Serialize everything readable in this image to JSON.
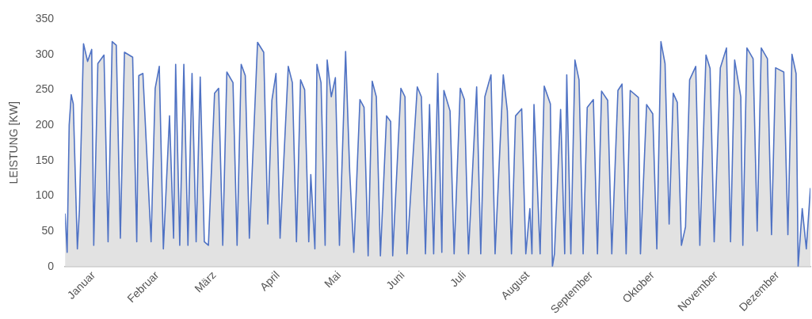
{
  "chart_data": {
    "type": "area",
    "ylabel": "LEISTUNG [KW]",
    "xlim": [
      "--01-01",
      "--12-31"
    ],
    "xticks": [
      {
        "value": "--01-15",
        "label": "Januar"
      },
      {
        "value": "--02-15",
        "label": "Februar"
      },
      {
        "value": "--03-15",
        "label": "März"
      },
      {
        "value": "--04-15",
        "label": "April"
      },
      {
        "value": "--05-15",
        "label": "Mai"
      },
      {
        "value": "--06-15",
        "label": "Juni"
      },
      {
        "value": "--07-15",
        "label": "Juli"
      },
      {
        "value": "--08-15",
        "label": "August"
      },
      {
        "value": "--09-15",
        "label": "September"
      },
      {
        "value": "--10-15",
        "label": "Oktober"
      },
      {
        "value": "--11-15",
        "label": "November"
      },
      {
        "value": "--12-15",
        "label": "Dezember"
      }
    ],
    "ylim": [
      0,
      350
    ],
    "yticks": [
      0,
      50,
      100,
      150,
      200,
      250,
      300,
      350
    ],
    "grid": false,
    "legend": false,
    "marker": "none",
    "line_style": "solid",
    "series": [
      {
        "color": "#4f72c4",
        "x": [
          "--01-01",
          "--01-02",
          "--01-03",
          "--01-04",
          "--01-05",
          "--01-07",
          "--01-08",
          "--01-10",
          "--01-12",
          "--01-14",
          "--01-15",
          "--01-17",
          "--01-20",
          "--01-22",
          "--01-24",
          "--01-26",
          "--01-28",
          "--01-30",
          "--02-03",
          "--02-05",
          "--02-06",
          "--02-08",
          "--02-12",
          "--02-14",
          "--02-16",
          "--02-18",
          "--02-21",
          "--02-23",
          "--02-24",
          "--02-26",
          "--02-28",
          "--03-02",
          "--03-04",
          "--03-06",
          "--03-08",
          "--03-10",
          "--03-12",
          "--03-15",
          "--03-17",
          "--03-19",
          "--03-21",
          "--03-24",
          "--03-26",
          "--03-28",
          "--03-30",
          "--04-01",
          "--04-05",
          "--04-08",
          "--04-10",
          "--04-12",
          "--04-14",
          "--04-16",
          "--04-20",
          "--04-22",
          "--04-24",
          "--04-26",
          "--04-28",
          "--04-30",
          "--05-01",
          "--05-03",
          "--05-04",
          "--05-06",
          "--05-08",
          "--05-09",
          "--05-11",
          "--05-13",
          "--05-15",
          "--05-18",
          "--05-20",
          "--05-22",
          "--05-25",
          "--05-27",
          "--05-29",
          "--05-31",
          "--06-02",
          "--06-04",
          "--06-07",
          "--06-09",
          "--06-10",
          "--06-14",
          "--06-16",
          "--06-17",
          "--06-22",
          "--06-24",
          "--06-26",
          "--06-28",
          "--06-30",
          "--07-02",
          "--07-04",
          "--07-05",
          "--07-08",
          "--07-10",
          "--07-13",
          "--07-15",
          "--07-17",
          "--07-21",
          "--07-23",
          "--07-25",
          "--07-28",
          "--07-30",
          "--08-03",
          "--08-05",
          "--08-07",
          "--08-09",
          "--08-12",
          "--08-14",
          "--08-16",
          "--08-17",
          "--08-18",
          "--08-21",
          "--08-23",
          "--08-26",
          "--08-27",
          "--08-28",
          "--08-31",
          "--09-02",
          "--09-03",
          "--09-05",
          "--09-07",
          "--09-09",
          "--09-11",
          "--09-13",
          "--09-16",
          "--09-18",
          "--09-20",
          "--09-23",
          "--09-25",
          "--09-28",
          "--09-30",
          "--10-02",
          "--10-04",
          "--10-08",
          "--10-09",
          "--10-12",
          "--10-15",
          "--10-17",
          "--10-19",
          "--10-21",
          "--10-23",
          "--10-25",
          "--10-27",
          "--10-29",
          "--10-31",
          "--11-02",
          "--11-05",
          "--11-07",
          "--11-10",
          "--11-12",
          "--11-14",
          "--11-17",
          "--11-20",
          "--11-22",
          "--11-24",
          "--11-27",
          "--11-28",
          "--11-30",
          "--12-03",
          "--12-05",
          "--12-07",
          "--12-10",
          "--12-12",
          "--12-14",
          "--12-18",
          "--12-20",
          "--12-22",
          "--12-24",
          "--12-25",
          "--12-27",
          "--12-29",
          "--12-31"
        ],
        "values": [
          75,
          20,
          200,
          243,
          230,
          25,
          80,
          315,
          290,
          307,
          30,
          287,
          299,
          35,
          318,
          313,
          40,
          303,
          296,
          35,
          270,
          273,
          35,
          252,
          283,
          25,
          213,
          40,
          286,
          30,
          286,
          30,
          273,
          35,
          268,
          35,
          30,
          245,
          252,
          30,
          275,
          260,
          30,
          286,
          270,
          40,
          317,
          303,
          60,
          235,
          273,
          40,
          283,
          260,
          35,
          264,
          250,
          35,
          130,
          25,
          286,
          260,
          30,
          292,
          240,
          267,
          30,
          304,
          134,
          20,
          236,
          225,
          15,
          262,
          240,
          15,
          213,
          205,
          15,
          252,
          240,
          18,
          254,
          240,
          18,
          229,
          18,
          273,
          20,
          249,
          220,
          18,
          252,
          236,
          18,
          254,
          18,
          240,
          271,
          18,
          271,
          220,
          18,
          213,
          223,
          18,
          82,
          18,
          229,
          18,
          255,
          230,
          0,
          18,
          222,
          18,
          271,
          18,
          292,
          264,
          18,
          225,
          236,
          18,
          248,
          235,
          18,
          249,
          258,
          18,
          249,
          239,
          18,
          229,
          216,
          25,
          318,
          287,
          60,
          245,
          232,
          30,
          56,
          264,
          283,
          30,
          299,
          280,
          35,
          281,
          309,
          35,
          292,
          240,
          30,
          309,
          294,
          50,
          309,
          294,
          45,
          281,
          275,
          45,
          300,
          273,
          0,
          82,
          25,
          111
        ]
      }
    ]
  }
}
